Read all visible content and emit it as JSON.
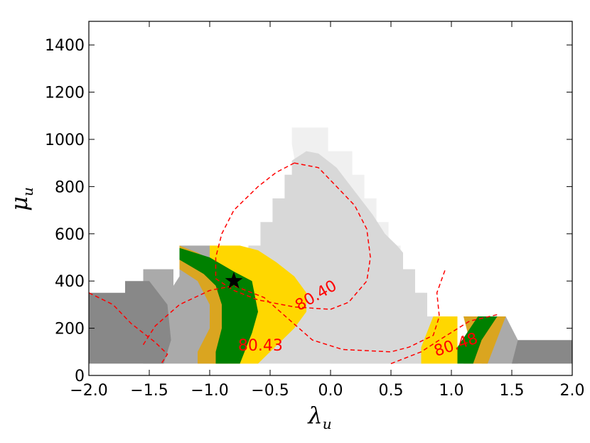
{
  "chart_data": {
    "type": "contour",
    "xlabel": "λ",
    "xlabel_sub": "u",
    "ylabel": "μ",
    "ylabel_sub": "u",
    "xlim": [
      -2.0,
      2.0
    ],
    "ylim": [
      0,
      1500
    ],
    "x_ticks": [
      "−2.0",
      "−1.5",
      "−1.0",
      "−0.5",
      "0.0",
      "0.5",
      "1.0",
      "1.5",
      "2.0"
    ],
    "y_ticks": [
      "0",
      "200",
      "400",
      "600",
      "800",
      "1000",
      "1200",
      "1400"
    ],
    "x_tick_values": [
      -2.0,
      -1.5,
      -1.0,
      -0.5,
      0.0,
      0.5,
      1.0,
      1.5,
      2.0
    ],
    "y_tick_values": [
      0,
      200,
      400,
      600,
      800,
      1000,
      1200,
      1400
    ],
    "colors": {
      "lightest_gray": "#f0f0f0",
      "light_gray": "#d8d8d8",
      "mid_gray": "#aaaaaa",
      "dark_gray": "#888888",
      "gold": "#daa520",
      "green": "#008000",
      "yellow": "#ffd700",
      "contour": "#ff0000",
      "marker": "#000000"
    },
    "regions": [
      {
        "name": "lightest-gray",
        "fill": "#f0f0f0",
        "points": [
          [
            -0.32,
            1050
          ],
          [
            -0.02,
            1050
          ],
          [
            -0.02,
            950
          ],
          [
            0.18,
            950
          ],
          [
            0.18,
            850
          ],
          [
            0.28,
            850
          ],
          [
            0.28,
            750
          ],
          [
            0.38,
            750
          ],
          [
            0.38,
            650
          ],
          [
            0.48,
            650
          ],
          [
            0.48,
            550
          ],
          [
            0.58,
            550
          ],
          [
            0.58,
            450
          ],
          [
            0.68,
            450
          ],
          [
            0.68,
            350
          ],
          [
            0.78,
            350
          ],
          [
            0.78,
            250
          ],
          [
            0.88,
            250
          ],
          [
            0.88,
            150
          ],
          [
            0.98,
            150
          ],
          [
            0.98,
            50
          ],
          [
            0.4,
            50
          ],
          [
            0.0,
            50
          ],
          [
            -0.32,
            980
          ]
        ]
      },
      {
        "name": "light-gray",
        "fill": "#d8d8d8",
        "points": [
          [
            -0.98,
            150
          ],
          [
            -0.98,
            250
          ],
          [
            -0.88,
            250
          ],
          [
            -0.88,
            350
          ],
          [
            -0.78,
            350
          ],
          [
            -0.78,
            450
          ],
          [
            -0.68,
            450
          ],
          [
            -0.68,
            550
          ],
          [
            -0.58,
            550
          ],
          [
            -0.58,
            650
          ],
          [
            -0.48,
            650
          ],
          [
            -0.48,
            750
          ],
          [
            -0.38,
            750
          ],
          [
            -0.38,
            850
          ],
          [
            -0.32,
            850
          ],
          [
            -0.32,
            910
          ],
          [
            -0.2,
            950
          ],
          [
            -0.1,
            940
          ],
          [
            0.05,
            880
          ],
          [
            0.2,
            780
          ],
          [
            0.35,
            680
          ],
          [
            0.45,
            600
          ],
          [
            0.55,
            550
          ],
          [
            0.6,
            520
          ],
          [
            0.6,
            450
          ],
          [
            0.7,
            450
          ],
          [
            0.7,
            350
          ],
          [
            0.8,
            350
          ],
          [
            0.8,
            250
          ],
          [
            0.9,
            250
          ],
          [
            0.9,
            150
          ],
          [
            1.0,
            150
          ],
          [
            1.0,
            50
          ],
          [
            -0.98,
            50
          ]
        ]
      },
      {
        "name": "mid-gray-left",
        "fill": "#aaaaaa",
        "points": [
          [
            -1.85,
            50
          ],
          [
            -1.55,
            50
          ],
          [
            -1.4,
            150
          ],
          [
            -1.4,
            300
          ],
          [
            -1.25,
            420
          ],
          [
            -1.25,
            550
          ],
          [
            -1.0,
            550
          ],
          [
            -1.0,
            50
          ],
          [
            -1.55,
            50
          ],
          [
            -1.55,
            450
          ],
          [
            -1.3,
            450
          ],
          [
            -1.3,
            50
          ]
        ]
      },
      {
        "name": "mid-gray-right",
        "fill": "#aaaaaa",
        "points": [
          [
            1.25,
            50
          ],
          [
            1.55,
            50
          ],
          [
            1.55,
            150
          ],
          [
            1.45,
            250
          ],
          [
            1.25,
            250
          ]
        ]
      },
      {
        "name": "dark-gray-left",
        "fill": "#888888",
        "points": [
          [
            -2.0,
            50
          ],
          [
            -1.38,
            50
          ],
          [
            -1.32,
            150
          ],
          [
            -1.35,
            300
          ],
          [
            -1.5,
            400
          ],
          [
            -1.7,
            400
          ],
          [
            -1.7,
            350
          ],
          [
            -2.0,
            350
          ]
        ]
      },
      {
        "name": "dark-gray-right",
        "fill": "#888888",
        "points": [
          [
            1.5,
            50
          ],
          [
            2.0,
            50
          ],
          [
            2.0,
            150
          ],
          [
            1.55,
            150
          ]
        ]
      },
      {
        "name": "yellow-left",
        "fill": "#ffd700",
        "points": [
          [
            -1.25,
            550
          ],
          [
            -0.75,
            550
          ],
          [
            -0.6,
            530
          ],
          [
            -0.45,
            480
          ],
          [
            -0.3,
            420
          ],
          [
            -0.2,
            350
          ],
          [
            -0.2,
            270
          ],
          [
            -0.3,
            200
          ],
          [
            -0.5,
            100
          ],
          [
            -0.6,
            50
          ],
          [
            -1.0,
            50
          ],
          [
            -1.0,
            550
          ]
        ]
      },
      {
        "name": "gold-left",
        "fill": "#daa520",
        "points": [
          [
            -1.25,
            550
          ],
          [
            -1.25,
            450
          ],
          [
            -1.1,
            400
          ],
          [
            -1.0,
            300
          ],
          [
            -1.0,
            200
          ],
          [
            -1.1,
            100
          ],
          [
            -1.1,
            50
          ],
          [
            -0.85,
            50
          ],
          [
            -0.85,
            450
          ],
          [
            -1.1,
            520
          ]
        ]
      },
      {
        "name": "green-left",
        "fill": "#008000",
        "points": [
          [
            -1.25,
            490
          ],
          [
            -1.05,
            430
          ],
          [
            -0.95,
            380
          ],
          [
            -0.9,
            300
          ],
          [
            -0.9,
            200
          ],
          [
            -0.95,
            100
          ],
          [
            -0.95,
            50
          ],
          [
            -0.75,
            50
          ],
          [
            -0.65,
            180
          ],
          [
            -0.6,
            270
          ],
          [
            -0.65,
            400
          ],
          [
            -0.8,
            440
          ],
          [
            -1.0,
            500
          ],
          [
            -1.25,
            540
          ]
        ]
      },
      {
        "name": "yellow-right",
        "fill": "#ffd700",
        "points": [
          [
            0.75,
            50
          ],
          [
            1.05,
            50
          ],
          [
            1.05,
            250
          ],
          [
            0.85,
            250
          ],
          [
            0.75,
            120
          ]
        ]
      },
      {
        "name": "gold-right",
        "fill": "#daa520",
        "points": [
          [
            1.1,
            50
          ],
          [
            1.3,
            50
          ],
          [
            1.45,
            250
          ],
          [
            1.1,
            250
          ],
          [
            1.15,
            150
          ]
        ]
      },
      {
        "name": "green-right",
        "fill": "#008000",
        "points": [
          [
            1.05,
            50
          ],
          [
            1.18,
            50
          ],
          [
            1.25,
            150
          ],
          [
            1.38,
            250
          ],
          [
            1.22,
            250
          ],
          [
            1.05,
            120
          ]
        ]
      }
    ],
    "contours": [
      {
        "level": "80.40",
        "points": [
          [
            -0.3,
            900
          ],
          [
            -0.1,
            880
          ],
          [
            0.05,
            800
          ],
          [
            0.2,
            720
          ],
          [
            0.3,
            620
          ],
          [
            0.33,
            500
          ],
          [
            0.3,
            400
          ],
          [
            0.15,
            310
          ],
          [
            0.0,
            280
          ],
          [
            -0.3,
            290
          ],
          [
            -0.6,
            320
          ],
          [
            -0.8,
            360
          ],
          [
            -0.95,
            410
          ],
          [
            -0.95,
            500
          ],
          [
            -0.9,
            600
          ],
          [
            -0.8,
            700
          ],
          [
            -0.6,
            800
          ],
          [
            -0.45,
            860
          ],
          [
            -0.3,
            900
          ]
        ]
      },
      {
        "level": "80.43",
        "points": [
          [
            -1.55,
            130
          ],
          [
            -1.45,
            210
          ],
          [
            -1.25,
            300
          ],
          [
            -1.0,
            360
          ],
          [
            -0.8,
            380
          ],
          [
            -0.55,
            330
          ],
          [
            -0.35,
            240
          ],
          [
            -0.15,
            150
          ],
          [
            0.1,
            110
          ],
          [
            0.5,
            100
          ],
          [
            0.65,
            120
          ],
          [
            0.85,
            170
          ],
          [
            0.9,
            250
          ],
          [
            0.88,
            350
          ],
          [
            0.95,
            450
          ]
        ]
      },
      {
        "level": "80.48",
        "points": [
          [
            0.5,
            50
          ],
          [
            0.75,
            100
          ],
          [
            0.9,
            150
          ],
          [
            1.15,
            230
          ],
          [
            1.4,
            260
          ]
        ]
      },
      {
        "level": "80.40b",
        "points": [
          [
            -2.0,
            350
          ],
          [
            -1.8,
            300
          ],
          [
            -1.65,
            220
          ],
          [
            -1.45,
            140
          ],
          [
            -1.35,
            90
          ],
          [
            -1.4,
            50
          ]
        ]
      }
    ],
    "contour_labels": [
      {
        "text": "80.40",
        "x": -0.1,
        "y": 320,
        "angle": -30
      },
      {
        "text": "80.43",
        "x": -0.58,
        "y": 105,
        "angle": 0
      },
      {
        "text": "80.48",
        "x": 1.05,
        "y": 110,
        "angle": -18
      }
    ],
    "marker": {
      "shape": "star",
      "x": -0.8,
      "y": 400
    }
  }
}
